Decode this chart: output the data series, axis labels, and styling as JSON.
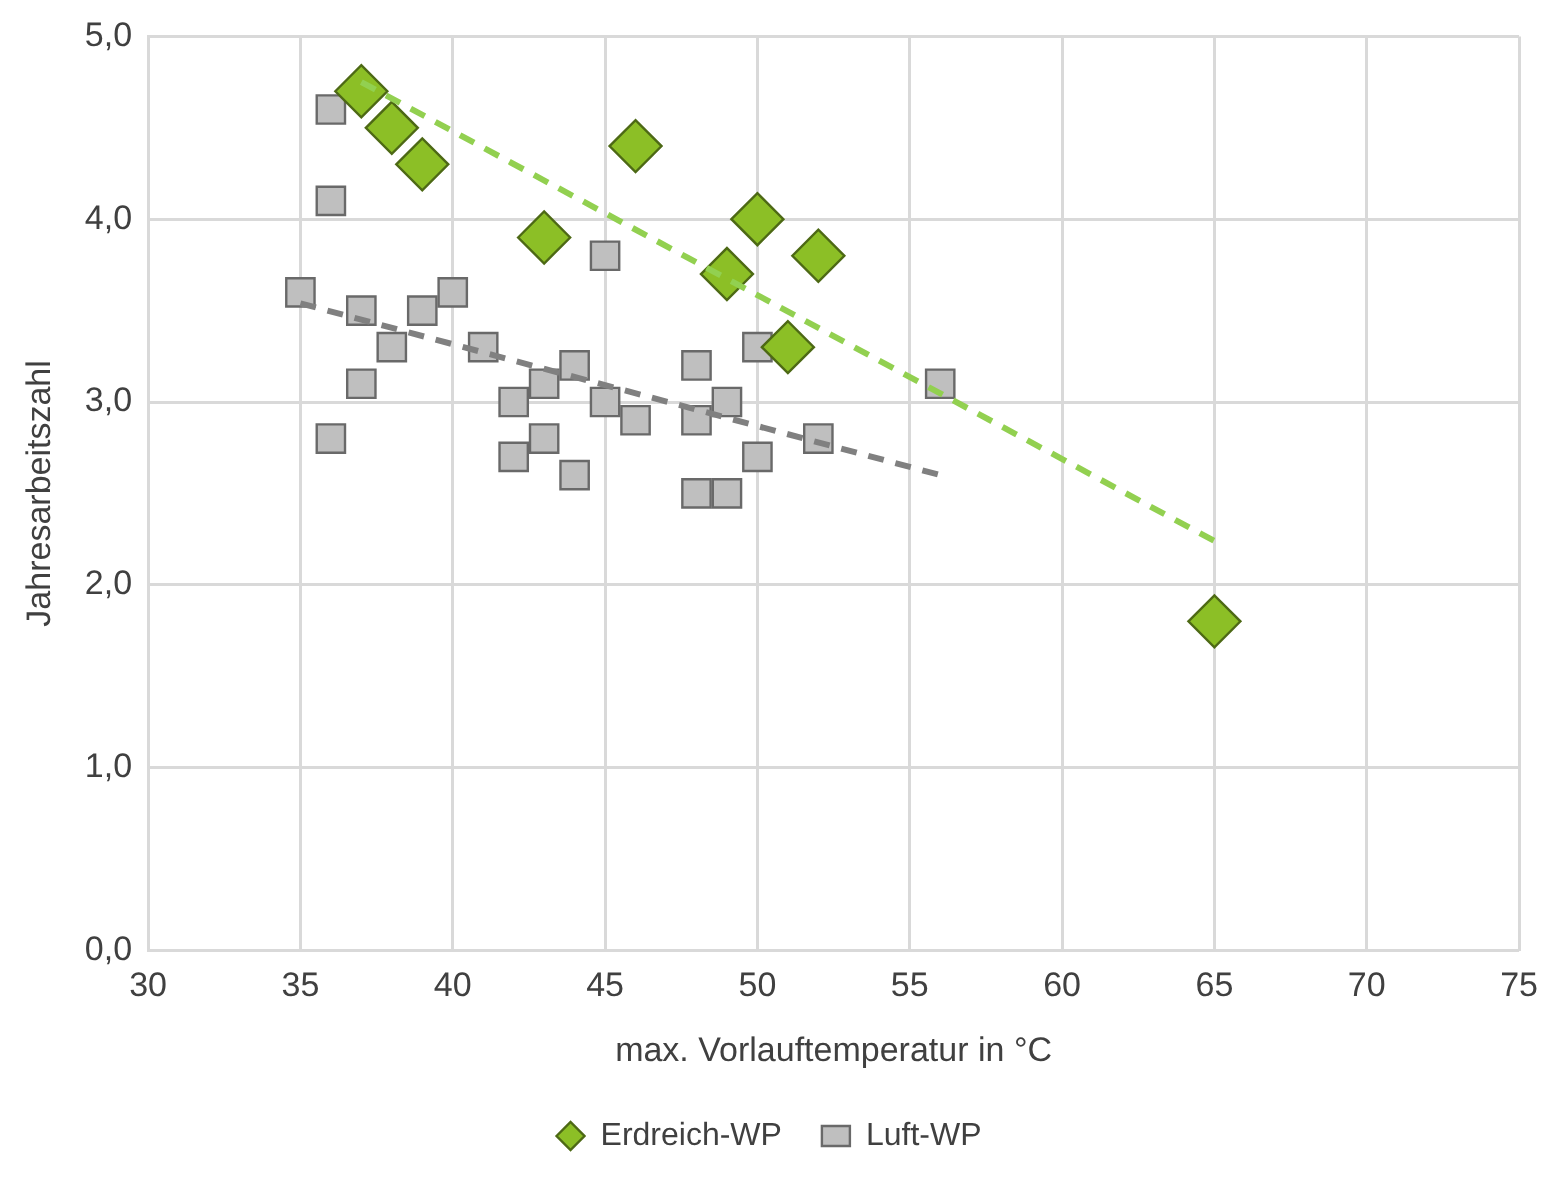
{
  "chart_data": {
    "type": "scatter",
    "xlabel": "max. Vorlauftemperatur in °C",
    "ylabel": "Jahresarbeitszahl",
    "xlim": [
      30,
      75
    ],
    "xticks": [
      30,
      35,
      40,
      45,
      50,
      55,
      60,
      65,
      70,
      75
    ],
    "ylim": [
      0,
      5
    ],
    "yticks": [
      {
        "value": 0,
        "label": "0,0"
      },
      {
        "value": 1,
        "label": "1,0"
      },
      {
        "value": 2,
        "label": "2,0"
      },
      {
        "value": 3,
        "label": "3,0"
      },
      {
        "value": 4,
        "label": "4,0"
      },
      {
        "value": 5,
        "label": "5,0"
      }
    ],
    "grid": true,
    "legend": "bottom",
    "series": [
      {
        "name": "Erdreich-WP",
        "color": "#8cbf26",
        "marker": "diamond",
        "x": [
          37,
          38,
          39,
          43,
          46,
          49,
          50,
          51,
          52,
          65
        ],
        "values": [
          4.7,
          4.5,
          4.3,
          3.9,
          4.4,
          3.7,
          4.0,
          3.3,
          3.8,
          1.8
        ]
      },
      {
        "name": "Luft-WP",
        "color": "#bfbfbf",
        "marker": "square",
        "x": [
          36,
          36,
          35,
          37,
          39,
          40,
          38,
          37,
          36,
          41,
          42,
          43,
          44,
          42,
          43,
          44,
          45,
          45,
          46,
          48,
          48,
          49,
          48,
          49,
          50,
          50,
          52,
          56
        ],
        "values": [
          4.6,
          4.1,
          3.6,
          3.5,
          3.5,
          3.6,
          3.3,
          3.1,
          2.8,
          3.3,
          3.0,
          3.1,
          3.2,
          2.7,
          2.8,
          2.6,
          3.8,
          3.0,
          2.9,
          3.2,
          2.9,
          3.0,
          2.5,
          2.5,
          3.3,
          2.7,
          2.8,
          3.1
        ]
      },
      {
        "type": "line",
        "color": "#92d050",
        "line_style": "dashed",
        "marker": "none",
        "x": [
          37,
          65
        ],
        "values": [
          4.75,
          2.24
        ]
      },
      {
        "type": "line",
        "color": "#808080",
        "line_style": "dashed",
        "marker": "none",
        "x": [
          35,
          56
        ],
        "values": [
          3.54,
          2.6
        ]
      }
    ]
  }
}
